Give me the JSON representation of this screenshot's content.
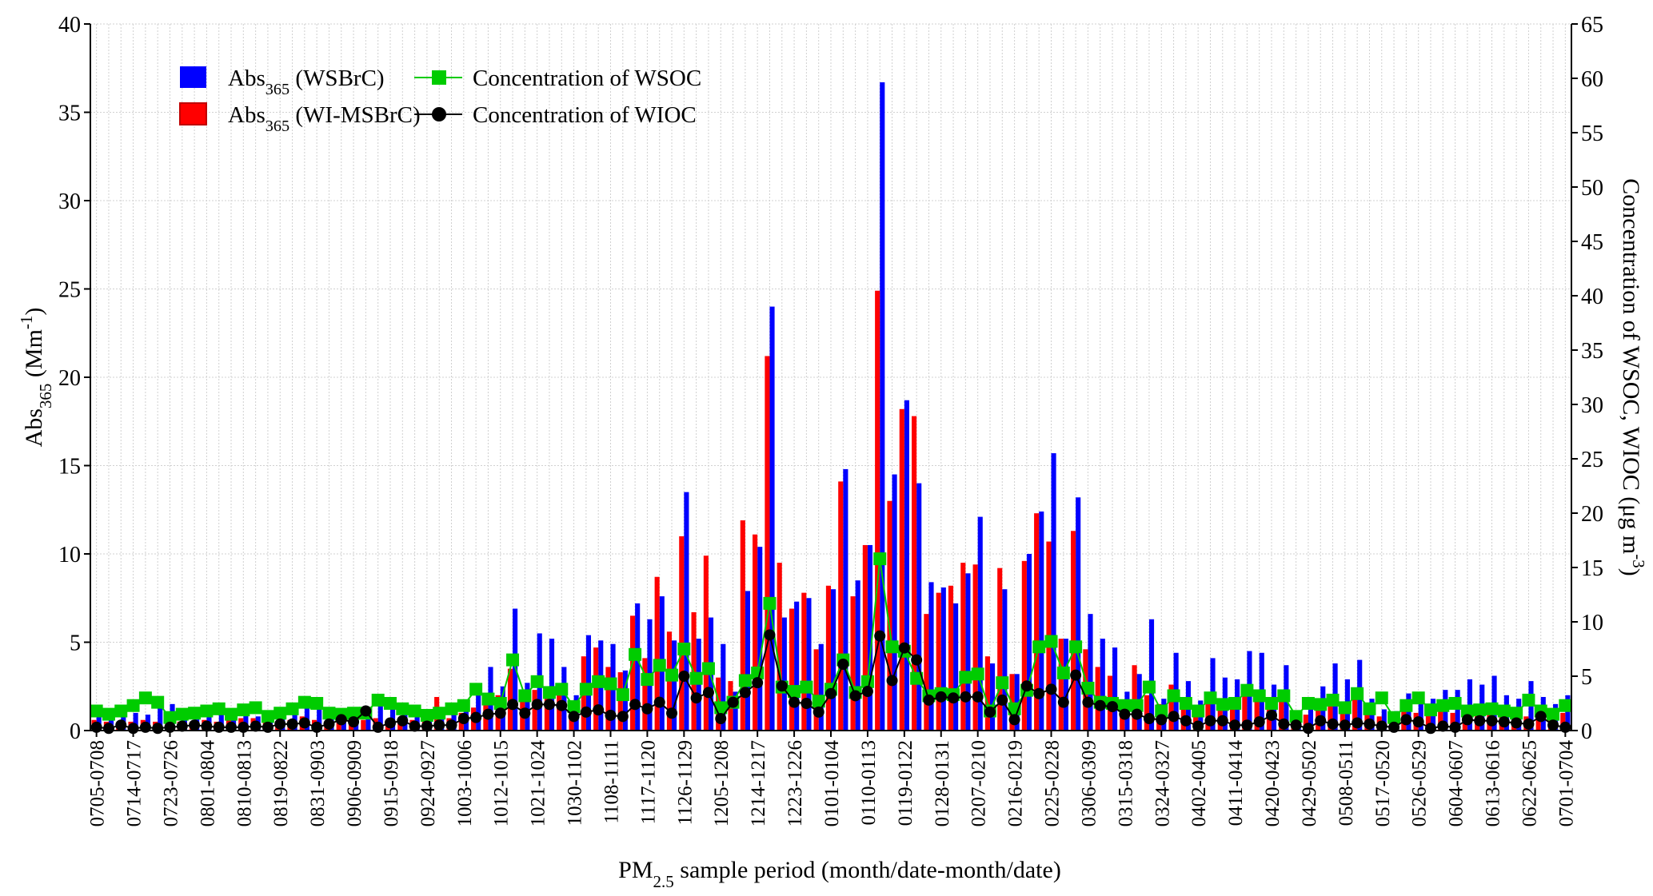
{
  "chart_data": {
    "type": "bar",
    "x_label": "PM2.5 sample period (month/date-month/date)",
    "y_label": "Abs365 (Mm-1)",
    "y2_label": "Concentration of WSOC, WIOC (μg m-3)",
    "legend": "upper left",
    "grid": true,
    "ylim": [
      0,
      40
    ],
    "yticks": [
      0,
      5,
      10,
      15,
      20,
      25,
      30,
      35,
      40
    ],
    "y2lim": [
      0,
      65
    ],
    "y2ticks": [
      0,
      5,
      10,
      15,
      20,
      25,
      30,
      35,
      40,
      45,
      50,
      55,
      60,
      65
    ],
    "categories": [
      "0705-0708",
      null,
      null,
      "0714-0717",
      null,
      null,
      "0723-0726",
      null,
      null,
      "0801-0804",
      null,
      null,
      "0810-0813",
      null,
      null,
      "0819-0822",
      null,
      null,
      "0831-0903",
      null,
      null,
      "0906-0909",
      null,
      null,
      "0915-0918",
      null,
      null,
      "0924-0927",
      null,
      null,
      "1003-1006",
      null,
      null,
      "1012-1015",
      null,
      null,
      "1021-1024",
      null,
      null,
      "1030-1102",
      null,
      null,
      "1108-1111",
      null,
      null,
      "1117-1120",
      null,
      null,
      "1126-1129",
      null,
      null,
      "1205-1208",
      null,
      null,
      "1214-1217",
      null,
      null,
      "1223-1226",
      null,
      null,
      "0101-0104",
      null,
      null,
      "0110-0113",
      null,
      null,
      "0119-0122",
      null,
      null,
      "0128-0131",
      null,
      null,
      "0207-0210",
      null,
      null,
      "0216-0219",
      null,
      null,
      "0225-0228",
      null,
      null,
      "0306-0309",
      null,
      null,
      "0315-0318",
      null,
      null,
      "0324-0327",
      null,
      null,
      "0402-0405",
      null,
      null,
      "0411-0414",
      null,
      null,
      "0420-0423",
      null,
      null,
      "0429-0502",
      null,
      null,
      "0508-0511",
      null,
      null,
      "0517-0520",
      null,
      null,
      "0526-0529",
      null,
      null,
      "0604-0607",
      null,
      null,
      "0613-0616",
      null,
      null,
      "0622-0625",
      null,
      null,
      "0701-0704"
    ],
    "series": [
      {
        "name": "Abs365 (WSBrC)",
        "type": "bar",
        "color": "#0000ff",
        "values": [
          0.8,
          0.7,
          0.9,
          1.0,
          0.9,
          1.3,
          1.5,
          1.2,
          0.9,
          0.8,
          1.0,
          1.2,
          0.9,
          0.8,
          0.9,
          0.7,
          0.9,
          1.8,
          1.7,
          0.8,
          0.9,
          0.8,
          1.0,
          1.4,
          1.3,
          1.1,
          0.8,
          0.9,
          1.2,
          1.0,
          1.3,
          2.0,
          3.6,
          2.5,
          6.9,
          2.7,
          5.5,
          5.2,
          3.6,
          2.0,
          5.4,
          5.1,
          4.9,
          3.4,
          7.2,
          6.3,
          7.6,
          5.1,
          13.5,
          5.2,
          6.4,
          4.9,
          2.2,
          7.9,
          10.4,
          24.0,
          6.4,
          7.3,
          7.5,
          4.9,
          8.0,
          14.8,
          8.5,
          10.5,
          36.7,
          14.5,
          18.7,
          14.0,
          8.4,
          8.1,
          7.2,
          8.9,
          12.1,
          3.8,
          8.0,
          3.2,
          10.0,
          12.4,
          15.7,
          5.2,
          13.2,
          6.6,
          5.2,
          4.7,
          2.2,
          3.2,
          6.3,
          1.8,
          4.4,
          2.8,
          1.7,
          4.1,
          3.0,
          2.9,
          4.5,
          4.4,
          2.6,
          3.7,
          1.1,
          1.5,
          2.5,
          3.8,
          2.9,
          4.0,
          1.8,
          1.2,
          1.1,
          2.1,
          1.8,
          1.8,
          2.3,
          2.3,
          2.9,
          2.6,
          3.1,
          2.0,
          1.8,
          2.8,
          1.9,
          1.5,
          2.0
        ]
      },
      {
        "name": "Abs365 (WI-MSBrC)",
        "type": "bar",
        "color": "#ff0000",
        "values": [
          0.6,
          0.5,
          0.4,
          0.5,
          0.6,
          0.5,
          0.6,
          0.5,
          0.5,
          0.6,
          0.5,
          0.6,
          0.7,
          0.7,
          0.6,
          0.5,
          0.6,
          0.8,
          0.6,
          0.5,
          0.6,
          0.5,
          0.6,
          0.7,
          0.6,
          0.5,
          0.6,
          0.5,
          1.9,
          0.7,
          1.0,
          1.3,
          1.8,
          2.0,
          3.5,
          2.0,
          2.3,
          2.5,
          2.3,
          1.5,
          4.2,
          4.7,
          3.6,
          3.3,
          6.5,
          4.1,
          8.7,
          5.6,
          11.0,
          6.7,
          9.9,
          3.0,
          2.8,
          11.9,
          11.1,
          21.2,
          9.5,
          6.9,
          7.8,
          4.6,
          8.2,
          14.1,
          7.6,
          10.5,
          24.9,
          13.0,
          18.2,
          17.8,
          6.6,
          7.8,
          8.2,
          9.5,
          9.4,
          4.2,
          9.2,
          3.2,
          9.6,
          12.3,
          10.7,
          5.2,
          11.3,
          4.6,
          3.6,
          3.1,
          1.7,
          3.7,
          2.0,
          1.5,
          2.6,
          1.6,
          1.1,
          1.8,
          1.8,
          1.7,
          2.0,
          1.9,
          1.5,
          1.8,
          0.7,
          0.9,
          1.2,
          1.4,
          1.3,
          1.8,
          1.1,
          0.8,
          0.6,
          1.4,
          1.0,
          1.1,
          1.2,
          1.0,
          1.2,
          1.1,
          1.3,
          1.0,
          0.9,
          0.8,
          1.2,
          0.9,
          1.0
        ]
      },
      {
        "name": "Concentration of WSOC",
        "type": "line",
        "axis": "y2",
        "marker": "square",
        "color": "#00cc00",
        "values": [
          1.8,
          1.5,
          1.8,
          2.3,
          3.0,
          2.6,
          1.2,
          1.5,
          1.6,
          1.8,
          2.0,
          1.5,
          1.9,
          2.1,
          1.3,
          1.6,
          2.0,
          2.6,
          2.5,
          1.6,
          1.5,
          1.6,
          1.6,
          2.8,
          2.5,
          2.0,
          1.8,
          1.4,
          1.6,
          2.0,
          2.3,
          3.8,
          2.9,
          2.5,
          6.5,
          3.2,
          4.5,
          3.5,
          3.8,
          2.2,
          3.8,
          4.5,
          4.3,
          3.3,
          7.0,
          4.7,
          6.0,
          5.1,
          7.5,
          4.8,
          5.7,
          2.1,
          2.6,
          4.6,
          5.3,
          11.7,
          4.0,
          3.6,
          4.0,
          2.7,
          3.8,
          6.5,
          3.5,
          4.5,
          15.8,
          7.7,
          7.3,
          4.8,
          3.2,
          3.4,
          3.3,
          4.9,
          5.2,
          1.8,
          4.4,
          2.0,
          3.7,
          7.7,
          8.2,
          5.3,
          7.7,
          3.9,
          2.6,
          2.5,
          2.3,
          2.3,
          4.0,
          1.8,
          3.2,
          2.5,
          1.8,
          3.0,
          2.4,
          2.5,
          3.7,
          3.2,
          2.5,
          3.2,
          1.3,
          2.5,
          2.4,
          2.8,
          2.1,
          3.4,
          2.0,
          3.0,
          1.2,
          2.3,
          3.0,
          1.9,
          2.3,
          2.5,
          1.8,
          1.9,
          2.0,
          1.8,
          1.6,
          2.8,
          1.8,
          1.5,
          2.3
        ]
      },
      {
        "name": "Concentration of WIOC",
        "type": "line",
        "axis": "y2",
        "marker": "circle",
        "color": "#000000",
        "values": [
          0.3,
          0.2,
          0.5,
          0.2,
          0.3,
          0.2,
          0.3,
          0.4,
          0.5,
          0.4,
          0.3,
          0.3,
          0.3,
          0.4,
          0.3,
          0.6,
          0.6,
          0.7,
          0.3,
          0.6,
          1.0,
          0.8,
          1.8,
          0.3,
          0.7,
          0.9,
          0.4,
          0.4,
          0.5,
          0.5,
          1.1,
          1.2,
          1.5,
          1.6,
          2.4,
          1.6,
          2.4,
          2.4,
          2.3,
          1.3,
          1.7,
          1.9,
          1.4,
          1.3,
          2.4,
          2.0,
          2.6,
          1.6,
          5.0,
          3.0,
          3.5,
          1.1,
          2.6,
          3.5,
          4.4,
          8.8,
          4.1,
          2.6,
          2.5,
          1.7,
          3.4,
          6.1,
          3.2,
          3.6,
          8.7,
          4.6,
          7.6,
          6.5,
          2.8,
          3.1,
          3.0,
          3.1,
          3.1,
          1.7,
          2.8,
          1.0,
          4.1,
          3.4,
          3.8,
          2.6,
          5.1,
          2.6,
          2.3,
          2.2,
          1.5,
          1.5,
          1.1,
          1.0,
          1.3,
          0.9,
          0.4,
          0.9,
          0.9,
          0.5,
          0.5,
          0.8,
          1.4,
          0.6,
          0.5,
          0.2,
          0.9,
          0.6,
          0.5,
          0.7,
          0.6,
          0.4,
          0.3,
          1.0,
          0.8,
          0.2,
          0.4,
          0.3,
          1.0,
          0.9,
          0.9,
          0.8,
          0.7,
          0.6,
          1.3,
          0.5,
          0.3
        ]
      }
    ]
  }
}
